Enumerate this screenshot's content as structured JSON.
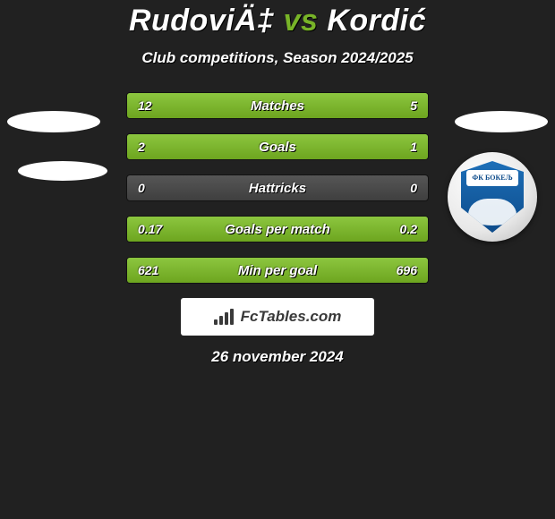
{
  "header": {
    "player_left": "Rudovi",
    "player_left_suffix": "Ä‡",
    "vs": " vs ",
    "player_right": "Kordić",
    "subtitle": "Club competitions, Season 2024/2025",
    "accent_color": "#78b428"
  },
  "club_right": {
    "ribbon_text": "ФК БОКЕЉ"
  },
  "stats": {
    "rows": [
      {
        "label": "Matches",
        "left": "12",
        "right": "5",
        "left_pct": 70.6,
        "right_pct": 29.4,
        "neutral": false
      },
      {
        "label": "Goals",
        "left": "2",
        "right": "1",
        "left_pct": 66.7,
        "right_pct": 33.3,
        "neutral": false
      },
      {
        "label": "Hattricks",
        "left": "0",
        "right": "0",
        "left_pct": 0,
        "right_pct": 0,
        "neutral": true
      },
      {
        "label": "Goals per match",
        "left": "0.17",
        "right": "0.2",
        "left_pct": 45.9,
        "right_pct": 54.1,
        "neutral": false
      },
      {
        "label": "Min per goal",
        "left": "621",
        "right": "696",
        "left_pct": 47.2,
        "right_pct": 52.8,
        "neutral": false
      }
    ],
    "row_bg_green": "linear-gradient(180deg, #8cc63f 0%, #6da51f 100%)",
    "row_bg_grey": "linear-gradient(180deg, #565656 0%, #3f3f3f 100%)"
  },
  "brand": {
    "text": "FcTables.com"
  },
  "date": "26 november 2024",
  "colors": {
    "background": "#212121",
    "text": "#ffffff",
    "bar_green_top": "#8cc63f",
    "bar_green_bottom": "#6da51f",
    "bar_grey_top": "#565656",
    "bar_grey_bottom": "#3f3f3f"
  }
}
